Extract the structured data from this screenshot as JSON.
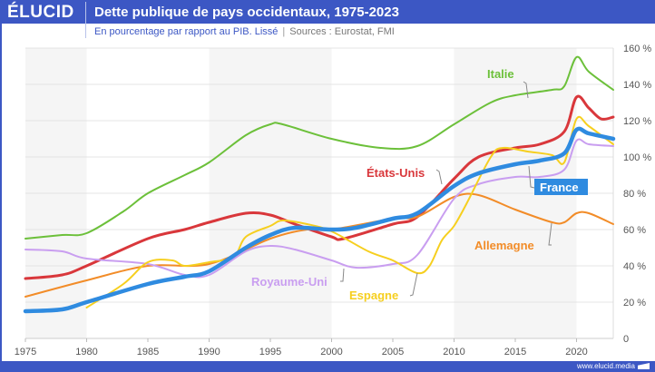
{
  "header": {
    "logo": "ÉLUCID",
    "title": "Dette publique de pays occidentaux, 1975-2023"
  },
  "subtitle": {
    "text": "En pourcentage par rapport au PIB. Lissé",
    "sources": "Sources : Eurostat, FMI"
  },
  "footer": {
    "url": "www.elucid.media"
  },
  "chart_data": {
    "type": "line",
    "title": "Dette publique de pays occidentaux, 1975-2023",
    "xlabel": "",
    "ylabel": "% du PIB",
    "xlim": [
      1975,
      2023
    ],
    "ylim": [
      0,
      160
    ],
    "x_ticks": [
      "1975",
      "1980",
      "1985",
      "1990",
      "1995",
      "2000",
      "2005",
      "2010",
      "2015",
      "2020"
    ],
    "y_ticks": [
      "0",
      "20 %",
      "40 %",
      "60 %",
      "80 %",
      "100 %",
      "120 %",
      "140 %",
      "160 %"
    ],
    "grid": true,
    "series": [
      {
        "name": "Italie",
        "color": "#6cc03a",
        "width": 2,
        "points": [
          [
            1975,
            55
          ],
          [
            1978,
            57
          ],
          [
            1980,
            58
          ],
          [
            1983,
            70
          ],
          [
            1985,
            80
          ],
          [
            1988,
            90
          ],
          [
            1990,
            97
          ],
          [
            1993,
            112
          ],
          [
            1995,
            118
          ],
          [
            1996,
            118
          ],
          [
            2000,
            110
          ],
          [
            2004,
            105
          ],
          [
            2007,
            106
          ],
          [
            2010,
            118
          ],
          [
            2013,
            130
          ],
          [
            2015,
            134
          ],
          [
            2018,
            137
          ],
          [
            2019,
            139
          ],
          [
            2020,
            155
          ],
          [
            2021,
            147
          ],
          [
            2023,
            137
          ]
        ]
      },
      {
        "name": "États-Unis",
        "color": "#d9373b",
        "width": 3,
        "points": [
          [
            1975,
            33
          ],
          [
            1978,
            35
          ],
          [
            1980,
            40
          ],
          [
            1985,
            55
          ],
          [
            1988,
            60
          ],
          [
            1990,
            64
          ],
          [
            1993,
            69
          ],
          [
            1995,
            68
          ],
          [
            1997,
            63
          ],
          [
            2000,
            56
          ],
          [
            2001,
            55
          ],
          [
            2005,
            63
          ],
          [
            2007,
            67
          ],
          [
            2010,
            88
          ],
          [
            2012,
            100
          ],
          [
            2015,
            105
          ],
          [
            2017,
            107
          ],
          [
            2019,
            114
          ],
          [
            2020,
            133
          ],
          [
            2021,
            127
          ],
          [
            2022,
            121
          ],
          [
            2023,
            122
          ]
        ]
      },
      {
        "name": "Allemagne",
        "color": "#f28c28",
        "width": 2,
        "points": [
          [
            1975,
            23
          ],
          [
            1980,
            32
          ],
          [
            1985,
            40
          ],
          [
            1990,
            41
          ],
          [
            1995,
            55
          ],
          [
            1998,
            60
          ],
          [
            2000,
            60
          ],
          [
            2005,
            66
          ],
          [
            2007,
            67
          ],
          [
            2010,
            78
          ],
          [
            2012,
            79
          ],
          [
            2015,
            71
          ],
          [
            2018,
            64
          ],
          [
            2019,
            64
          ],
          [
            2020,
            69
          ],
          [
            2021,
            69
          ],
          [
            2023,
            63
          ]
        ]
      },
      {
        "name": "Royaume-Uni",
        "color": "#c99ef0",
        "width": 2,
        "points": [
          [
            1975,
            49
          ],
          [
            1978,
            48
          ],
          [
            1980,
            44
          ],
          [
            1985,
            41
          ],
          [
            1988,
            35
          ],
          [
            1990,
            35
          ],
          [
            1993,
            48
          ],
          [
            1995,
            51
          ],
          [
            1997,
            49
          ],
          [
            2000,
            43
          ],
          [
            2002,
            39
          ],
          [
            2005,
            41
          ],
          [
            2007,
            46
          ],
          [
            2010,
            77
          ],
          [
            2012,
            85
          ],
          [
            2015,
            89
          ],
          [
            2017,
            89
          ],
          [
            2019,
            93
          ],
          [
            2020,
            109
          ],
          [
            2021,
            107
          ],
          [
            2023,
            106
          ]
        ]
      },
      {
        "name": "Espagne",
        "color": "#f6cf1f",
        "width": 2,
        "points": [
          [
            1980,
            17
          ],
          [
            1983,
            30
          ],
          [
            1985,
            42
          ],
          [
            1987,
            43
          ],
          [
            1988,
            40
          ],
          [
            1990,
            42
          ],
          [
            1992,
            45
          ],
          [
            1993,
            56
          ],
          [
            1995,
            62
          ],
          [
            1996,
            65
          ],
          [
            1998,
            63
          ],
          [
            2000,
            59
          ],
          [
            2003,
            48
          ],
          [
            2005,
            43
          ],
          [
            2007,
            36
          ],
          [
            2008,
            40
          ],
          [
            2009,
            54
          ],
          [
            2010,
            62
          ],
          [
            2011,
            74
          ],
          [
            2013,
            100
          ],
          [
            2014,
            105
          ],
          [
            2016,
            103
          ],
          [
            2018,
            101
          ],
          [
            2019,
            97
          ],
          [
            2020,
            121
          ],
          [
            2021,
            117
          ],
          [
            2023,
            107
          ]
        ]
      },
      {
        "name": "France",
        "color": "#2f8be0",
        "width": 4.5,
        "points": [
          [
            1975,
            15
          ],
          [
            1978,
            16
          ],
          [
            1980,
            20
          ],
          [
            1985,
            30
          ],
          [
            1988,
            34
          ],
          [
            1990,
            37
          ],
          [
            1993,
            50
          ],
          [
            1995,
            57
          ],
          [
            1997,
            61
          ],
          [
            2000,
            60
          ],
          [
            2002,
            61
          ],
          [
            2005,
            66
          ],
          [
            2007,
            69
          ],
          [
            2010,
            84
          ],
          [
            2012,
            91
          ],
          [
            2015,
            96
          ],
          [
            2017,
            98
          ],
          [
            2019,
            102
          ],
          [
            2020,
            115
          ],
          [
            2021,
            113
          ],
          [
            2023,
            110
          ]
        ]
      }
    ]
  }
}
